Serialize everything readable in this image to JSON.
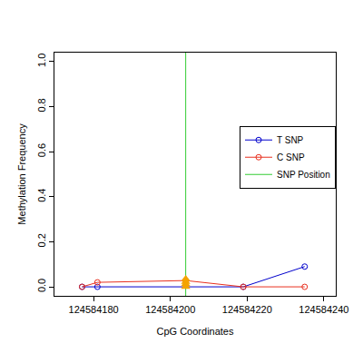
{
  "chart_data": {
    "type": "line",
    "x_label": "CpG Coordinates",
    "y_label": "Methylation Frequency",
    "xlim": [
      124584169.8,
      124584243.1
    ],
    "xticks": [
      124584180,
      124584200,
      124584220,
      124584240
    ],
    "ylim": [
      -0.04,
      1.04
    ],
    "yticks": [
      {
        "value": 0,
        "label": "0.0"
      },
      {
        "value": 0.2,
        "label": "0.2"
      },
      {
        "value": 0.4,
        "label": "0.4"
      },
      {
        "value": 0.6,
        "label": "0.6"
      },
      {
        "value": 0.8,
        "label": "0.8"
      },
      {
        "value": 1,
        "label": "1.0"
      }
    ],
    "grid": false,
    "legend": "right",
    "series": [
      {
        "name": "T SNP",
        "color": "#0000cc",
        "marker": "open-circle",
        "line_style": "solid",
        "x": [
          124584177,
          124584181,
          124584219,
          124584235
        ],
        "values": [
          0,
          0,
          0,
          0.09
        ]
      },
      {
        "name": "C SNP",
        "color": "#e8301f",
        "marker": "open-circle",
        "line_style": "solid",
        "x": [
          124584177,
          124584181,
          124584204,
          124584219,
          124584235
        ],
        "values": [
          0,
          0.02,
          0.028,
          0,
          0
        ]
      },
      {
        "type": "scatter",
        "color": "#f5a300",
        "marker": "triangle",
        "x": [
          124584204,
          124584204,
          124584204,
          124584204
        ],
        "values": [
          0,
          0.012,
          0.022,
          0.035
        ]
      }
    ],
    "snp_position": {
      "name": "SNP Position",
      "color": "#33cc33",
      "x": 124584204
    }
  }
}
